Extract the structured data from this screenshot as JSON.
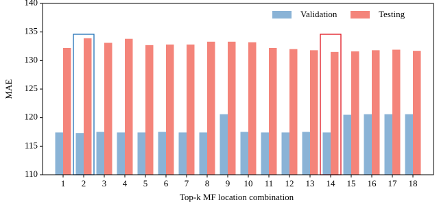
{
  "chart_data": {
    "type": "bar",
    "xlabel": "Top-k MF location combination",
    "ylabel": "MAE",
    "categories": [
      "1",
      "2",
      "3",
      "4",
      "5",
      "6",
      "7",
      "8",
      "9",
      "10",
      "11",
      "12",
      "13",
      "14",
      "15",
      "16",
      "17",
      "18"
    ],
    "series": [
      {
        "name": "Validation",
        "color": "#8ab3d6",
        "values": [
          117.4,
          117.3,
          117.5,
          117.4,
          117.4,
          117.5,
          117.4,
          117.4,
          120.6,
          117.5,
          117.4,
          117.4,
          117.5,
          117.4,
          120.5,
          120.6,
          120.6,
          120.6
        ]
      },
      {
        "name": "Testing",
        "color": "#f4847a",
        "values": [
          132.2,
          133.9,
          133.1,
          133.8,
          132.7,
          132.8,
          132.8,
          133.3,
          133.3,
          133.2,
          132.2,
          132.0,
          131.8,
          131.5,
          131.6,
          131.8,
          131.9,
          131.7
        ]
      }
    ],
    "ylim": [
      110,
      140
    ],
    "yticks": [
      110,
      115,
      120,
      125,
      130,
      135,
      140
    ],
    "legend": "upper right"
  }
}
